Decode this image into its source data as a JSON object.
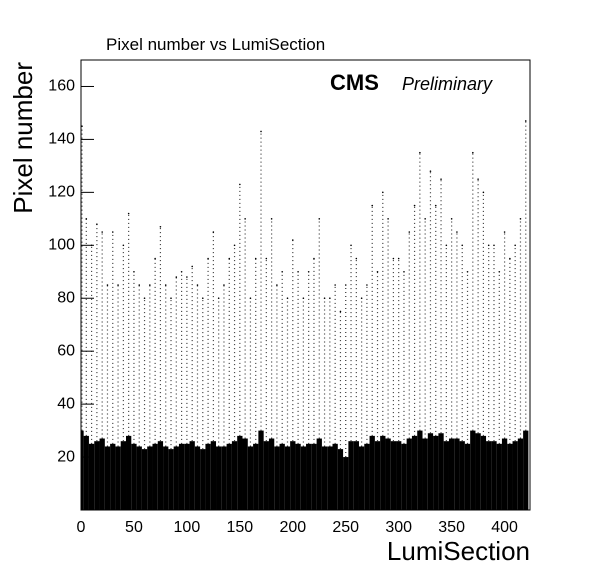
{
  "chart_data": {
    "type": "scatter",
    "title": "Pixel number vs LumiSection",
    "annotations": [
      "CMS",
      "Preliminary"
    ],
    "x_label": "LumiSection",
    "y_label": "Pixel number",
    "x": [
      0,
      5,
      10,
      15,
      20,
      25,
      30,
      35,
      40,
      45,
      50,
      55,
      60,
      65,
      70,
      75,
      80,
      85,
      90,
      95,
      100,
      105,
      110,
      115,
      120,
      125,
      130,
      135,
      140,
      145,
      150,
      155,
      160,
      165,
      170,
      175,
      180,
      185,
      190,
      195,
      200,
      205,
      210,
      215,
      220,
      225,
      230,
      235,
      240,
      245,
      250,
      255,
      260,
      265,
      270,
      275,
      280,
      285,
      290,
      295,
      300,
      305,
      310,
      315,
      320,
      325,
      330,
      335,
      340,
      345,
      350,
      355,
      360,
      365,
      370,
      375,
      380,
      385,
      390,
      395,
      400,
      405,
      410,
      415,
      420
    ],
    "series": [
      {
        "color": "#000000",
        "values": [
          145,
          110,
          100,
          108,
          105,
          85,
          105,
          85,
          100,
          112,
          90,
          85,
          80,
          85,
          95,
          107,
          85,
          80,
          88,
          90,
          88,
          92,
          85,
          80,
          95,
          105,
          80,
          85,
          95,
          100,
          123,
          110,
          80,
          95,
          143,
          95,
          110,
          85,
          90,
          80,
          102,
          90,
          80,
          90,
          95,
          110,
          80,
          80,
          85,
          75,
          85,
          100,
          95,
          80,
          85,
          115,
          90,
          120,
          110,
          95,
          95,
          90,
          105,
          115,
          135,
          110,
          128,
          115,
          125,
          100,
          110,
          105,
          100,
          90,
          135,
          125,
          120,
          100,
          100,
          90,
          105,
          95,
          100,
          110,
          147
        ]
      },
      {
        "color": "#000000",
        "values": [
          30,
          28,
          25,
          26,
          27,
          24,
          25,
          24,
          26,
          28,
          25,
          24,
          23,
          24,
          25,
          26,
          24,
          23,
          24,
          25,
          25,
          26,
          24,
          23,
          25,
          26,
          24,
          24,
          25,
          26,
          28,
          27,
          24,
          25,
          30,
          26,
          27,
          24,
          25,
          24,
          26,
          25,
          24,
          25,
          25,
          27,
          24,
          24,
          25,
          23,
          20,
          26,
          26,
          24,
          25,
          28,
          26,
          28,
          27,
          26,
          26,
          25,
          27,
          28,
          30,
          27,
          29,
          28,
          29,
          26,
          27,
          27,
          26,
          25,
          30,
          29,
          28,
          26,
          26,
          25,
          27,
          25,
          26,
          27,
          30
        ]
      }
    ],
    "xlim": [
      0,
      424
    ],
    "ylim": [
      0,
      170
    ],
    "xticks": [
      0,
      50,
      100,
      150,
      200,
      250,
      300,
      350,
      400
    ],
    "yticks": [
      20,
      40,
      60,
      80,
      100,
      120,
      140,
      160
    ]
  }
}
